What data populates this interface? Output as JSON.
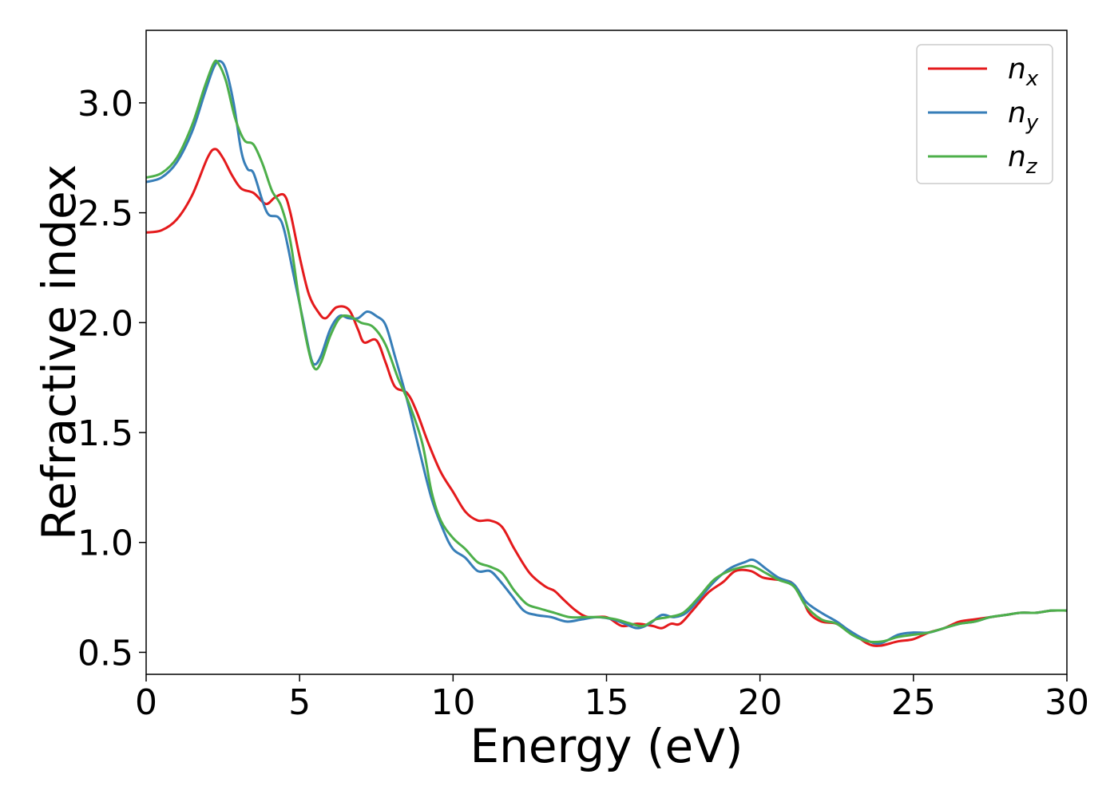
{
  "chart_data": {
    "type": "line",
    "title": "",
    "xlabel": "Energy (eV)",
    "ylabel": "Refractive index",
    "xlim": [
      0,
      30
    ],
    "ylim": [
      0.4,
      3.33
    ],
    "xticks": [
      0,
      5,
      10,
      15,
      20,
      25,
      30
    ],
    "yticks": [
      0.5,
      1.0,
      1.5,
      2.0,
      2.5,
      3.0
    ],
    "xtick_labels": [
      "0",
      "5",
      "10",
      "15",
      "20",
      "25",
      "30"
    ],
    "ytick_labels": [
      "0.5",
      "1.0",
      "1.5",
      "2.0",
      "2.5",
      "3.0"
    ],
    "grid": false,
    "legend_position": "top-right",
    "series": [
      {
        "name": "n",
        "subscript": "x",
        "color": "#e41a1c",
        "points": [
          [
            0,
            2.41
          ],
          [
            0.5,
            2.42
          ],
          [
            1.0,
            2.47
          ],
          [
            1.5,
            2.58
          ],
          [
            2.0,
            2.75
          ],
          [
            2.25,
            2.79
          ],
          [
            2.5,
            2.75
          ],
          [
            2.8,
            2.67
          ],
          [
            3.1,
            2.61
          ],
          [
            3.5,
            2.59
          ],
          [
            3.9,
            2.54
          ],
          [
            4.2,
            2.57
          ],
          [
            4.5,
            2.58
          ],
          [
            4.7,
            2.5
          ],
          [
            5.0,
            2.3
          ],
          [
            5.3,
            2.13
          ],
          [
            5.6,
            2.05
          ],
          [
            5.85,
            2.02
          ],
          [
            6.2,
            2.07
          ],
          [
            6.6,
            2.06
          ],
          [
            6.9,
            1.97
          ],
          [
            7.1,
            1.91
          ],
          [
            7.5,
            1.92
          ],
          [
            7.8,
            1.82
          ],
          [
            8.1,
            1.71
          ],
          [
            8.5,
            1.68
          ],
          [
            8.8,
            1.6
          ],
          [
            9.2,
            1.45
          ],
          [
            9.6,
            1.32
          ],
          [
            10.0,
            1.23
          ],
          [
            10.4,
            1.14
          ],
          [
            10.8,
            1.1
          ],
          [
            11.2,
            1.1
          ],
          [
            11.6,
            1.07
          ],
          [
            12.0,
            0.97
          ],
          [
            12.5,
            0.86
          ],
          [
            13.0,
            0.8
          ],
          [
            13.3,
            0.78
          ],
          [
            13.6,
            0.74
          ],
          [
            14.0,
            0.69
          ],
          [
            14.4,
            0.66
          ],
          [
            15.0,
            0.66
          ],
          [
            15.5,
            0.62
          ],
          [
            16.0,
            0.63
          ],
          [
            16.5,
            0.62
          ],
          [
            16.8,
            0.61
          ],
          [
            17.1,
            0.63
          ],
          [
            17.4,
            0.63
          ],
          [
            17.8,
            0.69
          ],
          [
            18.3,
            0.77
          ],
          [
            18.8,
            0.82
          ],
          [
            19.2,
            0.87
          ],
          [
            19.7,
            0.87
          ],
          [
            20.1,
            0.84
          ],
          [
            20.6,
            0.83
          ],
          [
            21.0,
            0.82
          ],
          [
            21.3,
            0.77
          ],
          [
            21.6,
            0.68
          ],
          [
            22.0,
            0.64
          ],
          [
            22.5,
            0.63
          ],
          [
            23.0,
            0.59
          ],
          [
            23.5,
            0.54
          ],
          [
            23.9,
            0.53
          ],
          [
            24.5,
            0.55
          ],
          [
            25.0,
            0.56
          ],
          [
            25.5,
            0.59
          ],
          [
            26.0,
            0.61
          ],
          [
            26.5,
            0.64
          ],
          [
            27.0,
            0.65
          ],
          [
            27.5,
            0.66
          ],
          [
            28.0,
            0.67
          ],
          [
            28.5,
            0.68
          ],
          [
            29.0,
            0.68
          ],
          [
            29.5,
            0.69
          ],
          [
            30.0,
            0.69
          ]
        ]
      },
      {
        "name": "n",
        "subscript": "y",
        "color": "#377eb8",
        "points": [
          [
            0,
            2.64
          ],
          [
            0.5,
            2.66
          ],
          [
            1.0,
            2.73
          ],
          [
            1.5,
            2.87
          ],
          [
            1.9,
            3.04
          ],
          [
            2.2,
            3.16
          ],
          [
            2.4,
            3.19
          ],
          [
            2.6,
            3.15
          ],
          [
            2.85,
            3.0
          ],
          [
            3.1,
            2.78
          ],
          [
            3.3,
            2.7
          ],
          [
            3.5,
            2.68
          ],
          [
            3.8,
            2.55
          ],
          [
            4.0,
            2.49
          ],
          [
            4.3,
            2.48
          ],
          [
            4.5,
            2.42
          ],
          [
            4.8,
            2.22
          ],
          [
            5.1,
            2.02
          ],
          [
            5.35,
            1.85
          ],
          [
            5.5,
            1.81
          ],
          [
            5.7,
            1.85
          ],
          [
            6.0,
            1.97
          ],
          [
            6.3,
            2.03
          ],
          [
            6.6,
            2.02
          ],
          [
            6.9,
            2.02
          ],
          [
            7.2,
            2.05
          ],
          [
            7.5,
            2.03
          ],
          [
            7.8,
            1.99
          ],
          [
            8.1,
            1.85
          ],
          [
            8.5,
            1.65
          ],
          [
            8.9,
            1.42
          ],
          [
            9.3,
            1.2
          ],
          [
            9.7,
            1.05
          ],
          [
            10.0,
            0.97
          ],
          [
            10.4,
            0.93
          ],
          [
            10.8,
            0.87
          ],
          [
            11.2,
            0.87
          ],
          [
            11.5,
            0.83
          ],
          [
            11.9,
            0.76
          ],
          [
            12.3,
            0.69
          ],
          [
            12.7,
            0.67
          ],
          [
            13.2,
            0.66
          ],
          [
            13.7,
            0.64
          ],
          [
            14.2,
            0.65
          ],
          [
            14.7,
            0.66
          ],
          [
            15.2,
            0.65
          ],
          [
            15.6,
            0.63
          ],
          [
            16.0,
            0.61
          ],
          [
            16.4,
            0.63
          ],
          [
            16.8,
            0.67
          ],
          [
            17.2,
            0.66
          ],
          [
            17.6,
            0.68
          ],
          [
            18.0,
            0.74
          ],
          [
            18.5,
            0.82
          ],
          [
            19.0,
            0.88
          ],
          [
            19.5,
            0.91
          ],
          [
            19.8,
            0.92
          ],
          [
            20.2,
            0.88
          ],
          [
            20.6,
            0.84
          ],
          [
            21.1,
            0.81
          ],
          [
            21.5,
            0.73
          ],
          [
            22.0,
            0.68
          ],
          [
            22.5,
            0.64
          ],
          [
            22.9,
            0.6
          ],
          [
            23.4,
            0.56
          ],
          [
            23.9,
            0.54
          ],
          [
            24.5,
            0.58
          ],
          [
            25.0,
            0.59
          ],
          [
            25.5,
            0.59
          ],
          [
            26.0,
            0.61
          ],
          [
            26.5,
            0.63
          ],
          [
            27.0,
            0.64
          ],
          [
            27.5,
            0.66
          ],
          [
            28.0,
            0.67
          ],
          [
            28.5,
            0.68
          ],
          [
            29.0,
            0.68
          ],
          [
            29.5,
            0.69
          ],
          [
            30.0,
            0.69
          ]
        ]
      },
      {
        "name": "n",
        "subscript": "z",
        "color": "#4daf4a",
        "points": [
          [
            0,
            2.66
          ],
          [
            0.5,
            2.68
          ],
          [
            1.0,
            2.75
          ],
          [
            1.5,
            2.9
          ],
          [
            1.9,
            3.07
          ],
          [
            2.2,
            3.18
          ],
          [
            2.35,
            3.18
          ],
          [
            2.6,
            3.1
          ],
          [
            2.9,
            2.93
          ],
          [
            3.2,
            2.83
          ],
          [
            3.5,
            2.81
          ],
          [
            3.8,
            2.72
          ],
          [
            4.1,
            2.6
          ],
          [
            4.4,
            2.53
          ],
          [
            4.7,
            2.37
          ],
          [
            5.0,
            2.09
          ],
          [
            5.3,
            1.87
          ],
          [
            5.5,
            1.79
          ],
          [
            5.7,
            1.82
          ],
          [
            6.0,
            1.94
          ],
          [
            6.3,
            2.02
          ],
          [
            6.6,
            2.03
          ],
          [
            7.0,
            2.0
          ],
          [
            7.4,
            1.98
          ],
          [
            7.8,
            1.9
          ],
          [
            8.2,
            1.75
          ],
          [
            8.6,
            1.62
          ],
          [
            9.0,
            1.45
          ],
          [
            9.3,
            1.23
          ],
          [
            9.6,
            1.1
          ],
          [
            10.0,
            1.02
          ],
          [
            10.4,
            0.97
          ],
          [
            10.8,
            0.91
          ],
          [
            11.2,
            0.89
          ],
          [
            11.6,
            0.86
          ],
          [
            12.0,
            0.78
          ],
          [
            12.4,
            0.72
          ],
          [
            12.8,
            0.7
          ],
          [
            13.3,
            0.68
          ],
          [
            13.8,
            0.66
          ],
          [
            14.3,
            0.66
          ],
          [
            14.8,
            0.66
          ],
          [
            15.3,
            0.65
          ],
          [
            15.8,
            0.63
          ],
          [
            16.2,
            0.62
          ],
          [
            16.6,
            0.65
          ],
          [
            17.0,
            0.66
          ],
          [
            17.5,
            0.68
          ],
          [
            18.0,
            0.75
          ],
          [
            18.5,
            0.83
          ],
          [
            19.0,
            0.87
          ],
          [
            19.5,
            0.89
          ],
          [
            19.8,
            0.89
          ],
          [
            20.2,
            0.86
          ],
          [
            20.6,
            0.83
          ],
          [
            21.1,
            0.8
          ],
          [
            21.5,
            0.71
          ],
          [
            22.0,
            0.65
          ],
          [
            22.5,
            0.63
          ],
          [
            23.0,
            0.58
          ],
          [
            23.5,
            0.55
          ],
          [
            24.0,
            0.55
          ],
          [
            24.5,
            0.57
          ],
          [
            25.0,
            0.58
          ],
          [
            25.5,
            0.59
          ],
          [
            26.0,
            0.61
          ],
          [
            26.5,
            0.63
          ],
          [
            27.0,
            0.64
          ],
          [
            27.5,
            0.66
          ],
          [
            28.0,
            0.67
          ],
          [
            28.5,
            0.68
          ],
          [
            29.0,
            0.68
          ],
          [
            29.5,
            0.69
          ],
          [
            30.0,
            0.69
          ]
        ]
      }
    ]
  }
}
